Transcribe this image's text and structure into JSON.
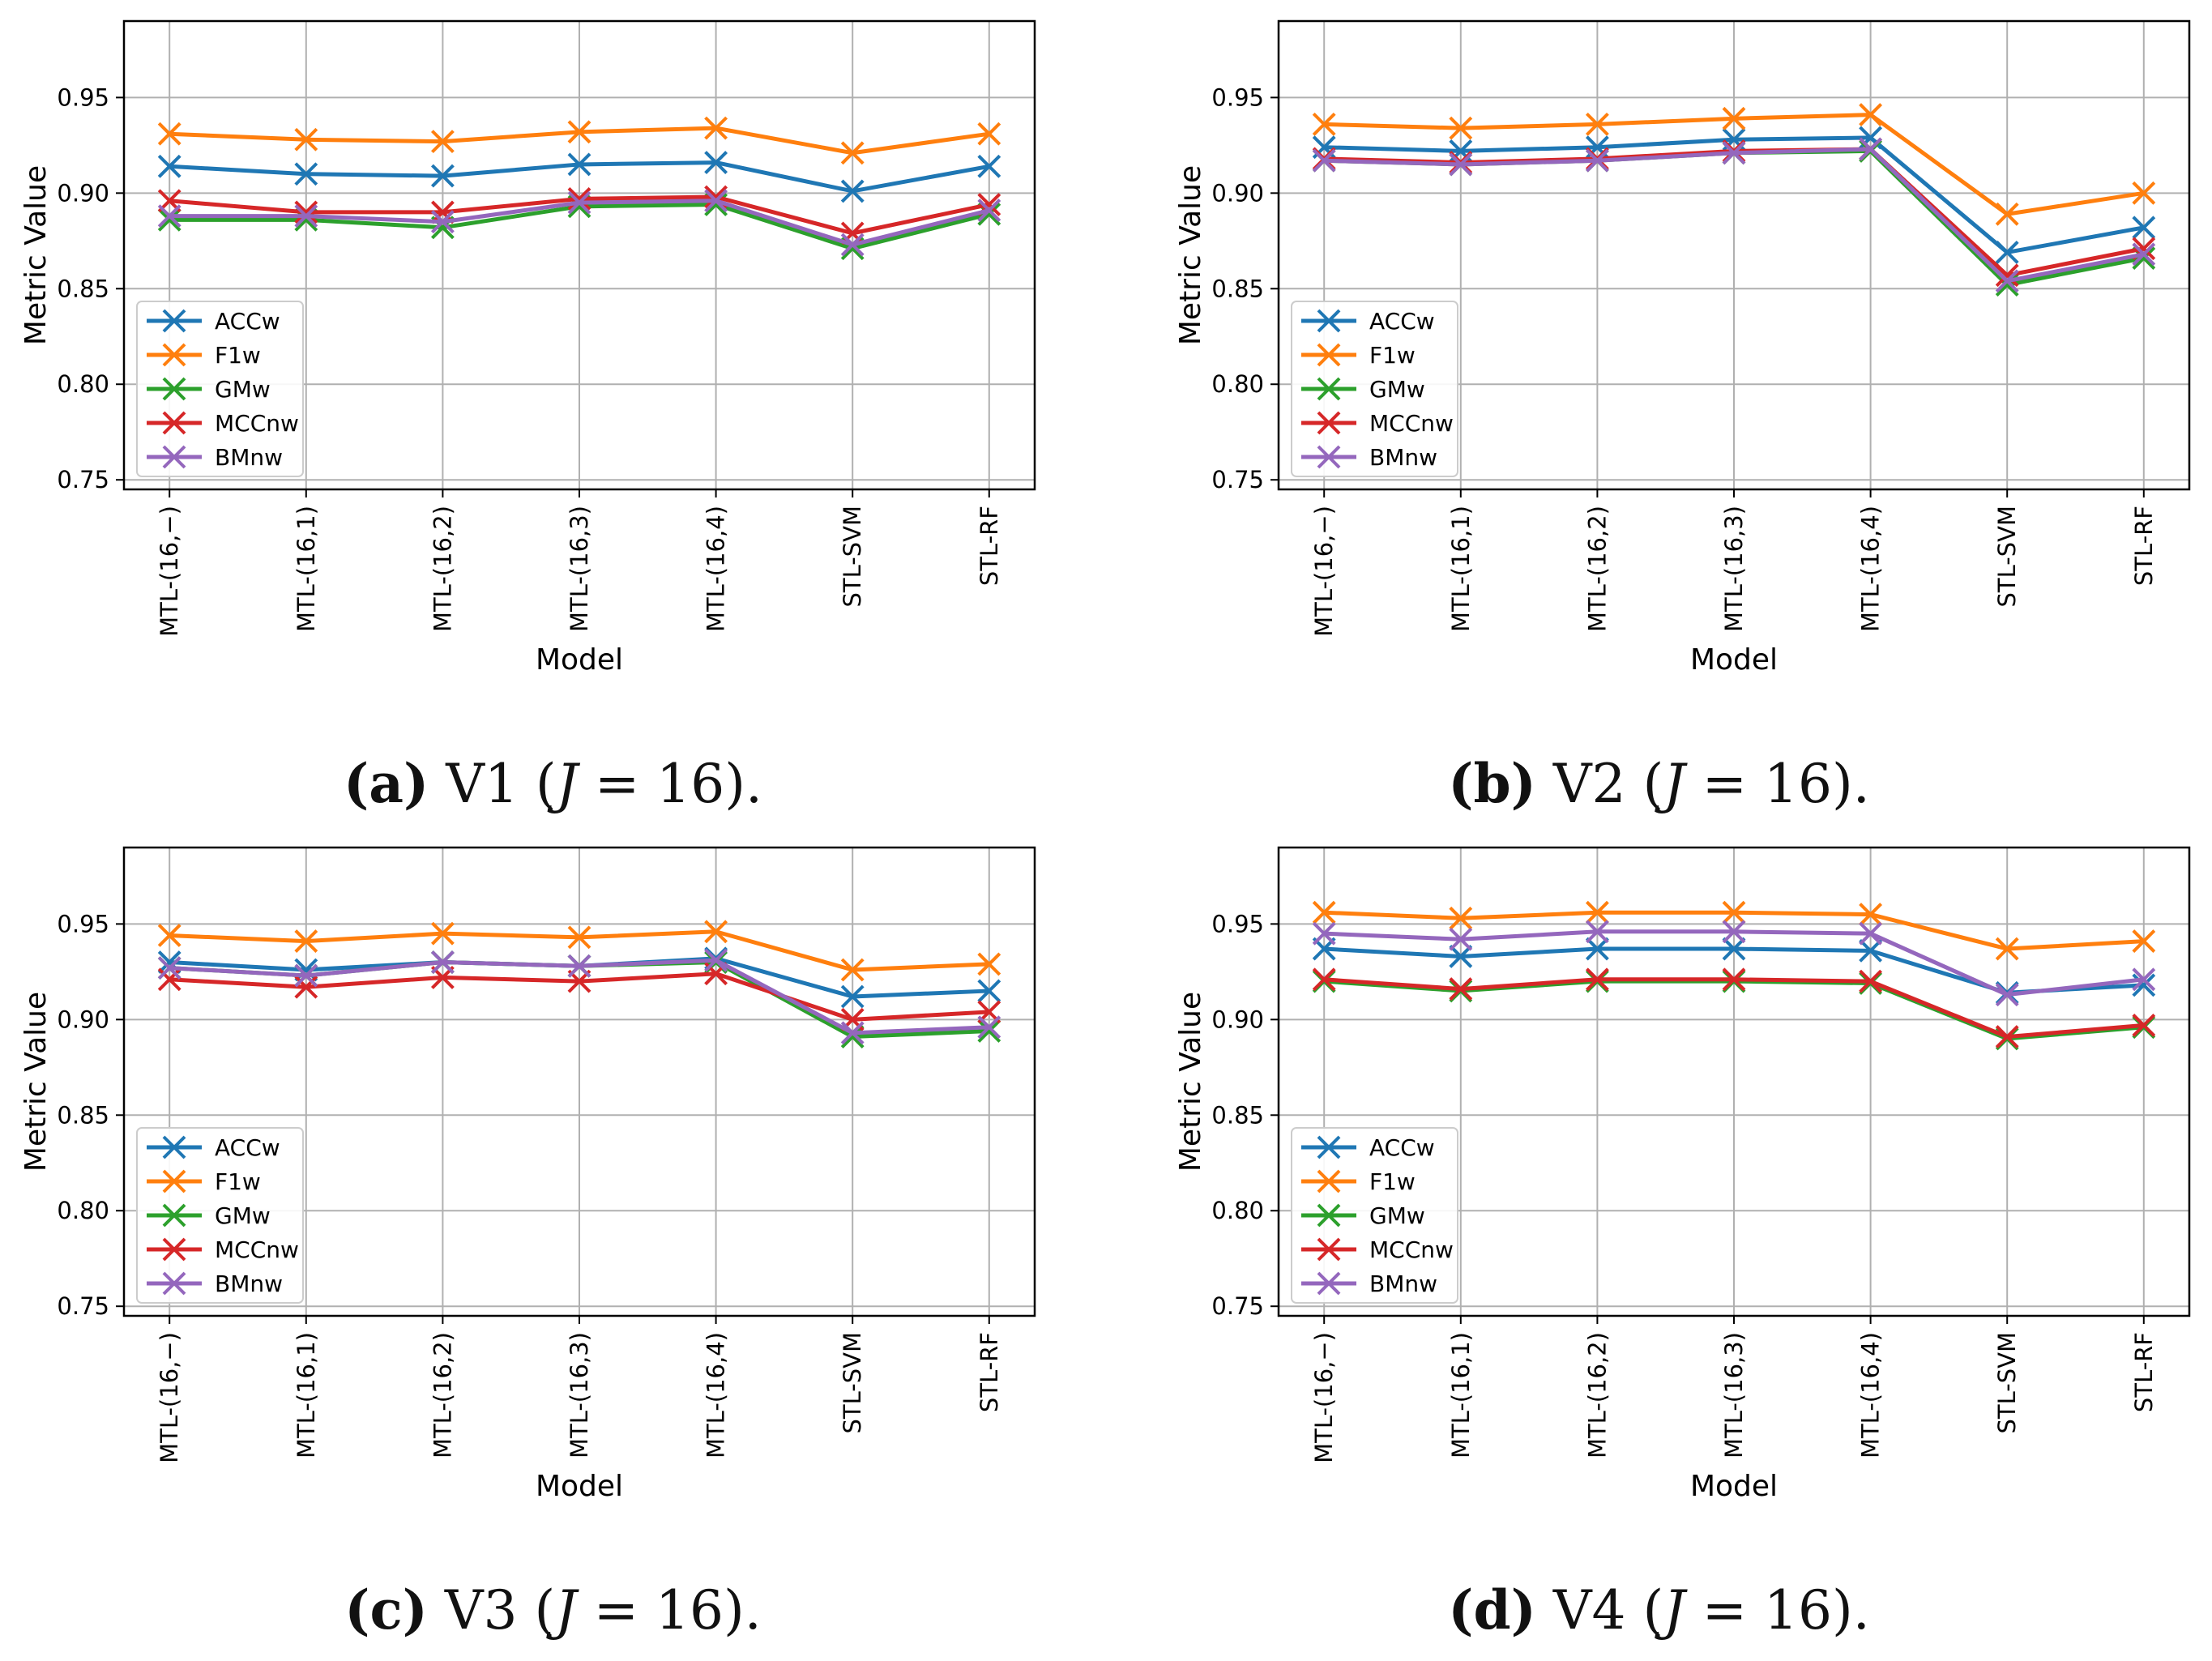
{
  "colors": {
    "ACCw": "#1f77b4",
    "F1w": "#ff7f0e",
    "GMw": "#2ca02c",
    "MCCnw": "#d62728",
    "BMnw": "#9467bd",
    "grid": "#b0b0b0",
    "axis": "#000000"
  },
  "chart_data": [
    {
      "type": "line",
      "caption": {
        "label": "(a)",
        "text": "V1 (",
        "var": "J",
        "rest": " = 16)."
      },
      "xlabel": "Model",
      "ylabel": "Metric Value",
      "ylim": [
        0.745,
        0.99
      ],
      "yticks": [
        "0.75",
        "0.80",
        "0.85",
        "0.90",
        "0.95"
      ],
      "categories": [
        "MTL-(16,−)",
        "MTL-(16,1)",
        "MTL-(16,2)",
        "MTL-(16,3)",
        "MTL-(16,4)",
        "STL-SVM",
        "STL-RF"
      ],
      "legend_position": "lower-left",
      "series": [
        {
          "name": "ACCw",
          "values": [
            0.914,
            0.91,
            0.909,
            0.915,
            0.916,
            0.901,
            0.914
          ]
        },
        {
          "name": "F1w",
          "values": [
            0.931,
            0.928,
            0.927,
            0.932,
            0.934,
            0.921,
            0.931
          ]
        },
        {
          "name": "GMw",
          "values": [
            0.886,
            0.886,
            0.882,
            0.893,
            0.894,
            0.871,
            0.889
          ]
        },
        {
          "name": "MCCnw",
          "values": [
            0.896,
            0.89,
            0.89,
            0.897,
            0.898,
            0.879,
            0.894
          ]
        },
        {
          "name": "BMnw",
          "values": [
            0.888,
            0.888,
            0.885,
            0.895,
            0.896,
            0.873,
            0.891
          ]
        }
      ]
    },
    {
      "type": "line",
      "caption": {
        "label": "(b)",
        "text": "V2 (",
        "var": "J",
        "rest": " = 16)."
      },
      "xlabel": "Model",
      "ylabel": "Metric Value",
      "ylim": [
        0.745,
        0.99
      ],
      "yticks": [
        "0.75",
        "0.80",
        "0.85",
        "0.90",
        "0.95"
      ],
      "categories": [
        "MTL-(16,−)",
        "MTL-(16,1)",
        "MTL-(16,2)",
        "MTL-(16,3)",
        "MTL-(16,4)",
        "STL-SVM",
        "STL-RF"
      ],
      "legend_position": "lower-left",
      "series": [
        {
          "name": "ACCw",
          "values": [
            0.924,
            0.922,
            0.924,
            0.928,
            0.929,
            0.869,
            0.882
          ]
        },
        {
          "name": "F1w",
          "values": [
            0.936,
            0.934,
            0.936,
            0.939,
            0.941,
            0.889,
            0.9
          ]
        },
        {
          "name": "GMw",
          "values": [
            0.917,
            0.915,
            0.917,
            0.921,
            0.922,
            0.852,
            0.866
          ]
        },
        {
          "name": "MCCnw",
          "values": [
            0.918,
            0.916,
            0.918,
            0.922,
            0.923,
            0.857,
            0.871
          ]
        },
        {
          "name": "BMnw",
          "values": [
            0.917,
            0.915,
            0.917,
            0.921,
            0.923,
            0.854,
            0.868
          ]
        }
      ]
    },
    {
      "type": "line",
      "caption": {
        "label": "(c)",
        "text": "V3 (",
        "var": "J",
        "rest": " = 16)."
      },
      "xlabel": "Model",
      "ylabel": "Metric Value",
      "ylim": [
        0.745,
        0.99
      ],
      "yticks": [
        "0.75",
        "0.80",
        "0.85",
        "0.90",
        "0.95"
      ],
      "categories": [
        "MTL-(16,−)",
        "MTL-(16,1)",
        "MTL-(16,2)",
        "MTL-(16,3)",
        "MTL-(16,4)",
        "STL-SVM",
        "STL-RF"
      ],
      "legend_position": "lower-left",
      "series": [
        {
          "name": "ACCw",
          "values": [
            0.93,
            0.926,
            0.93,
            0.928,
            0.932,
            0.912,
            0.915
          ]
        },
        {
          "name": "F1w",
          "values": [
            0.944,
            0.941,
            0.945,
            0.943,
            0.946,
            0.926,
            0.929
          ]
        },
        {
          "name": "GMw",
          "values": [
            0.927,
            0.923,
            0.93,
            0.928,
            0.93,
            0.891,
            0.894
          ]
        },
        {
          "name": "MCCnw",
          "values": [
            0.921,
            0.917,
            0.922,
            0.92,
            0.924,
            0.9,
            0.904
          ]
        },
        {
          "name": "BMnw",
          "values": [
            0.927,
            0.923,
            0.93,
            0.928,
            0.931,
            0.893,
            0.896
          ]
        }
      ]
    },
    {
      "type": "line",
      "caption": {
        "label": "(d)",
        "text": "V4 (",
        "var": "J",
        "rest": " = 16)."
      },
      "xlabel": "Model",
      "ylabel": "Metric Value",
      "ylim": [
        0.745,
        0.99
      ],
      "yticks": [
        "0.75",
        "0.80",
        "0.85",
        "0.90",
        "0.95"
      ],
      "categories": [
        "MTL-(16,−)",
        "MTL-(16,1)",
        "MTL-(16,2)",
        "MTL-(16,3)",
        "MTL-(16,4)",
        "STL-SVM",
        "STL-RF"
      ],
      "legend_position": "lower-left",
      "series": [
        {
          "name": "ACCw",
          "values": [
            0.937,
            0.933,
            0.937,
            0.937,
            0.936,
            0.914,
            0.918
          ]
        },
        {
          "name": "F1w",
          "values": [
            0.956,
            0.953,
            0.956,
            0.956,
            0.955,
            0.937,
            0.941
          ]
        },
        {
          "name": "GMw",
          "values": [
            0.92,
            0.915,
            0.92,
            0.92,
            0.919,
            0.89,
            0.896
          ]
        },
        {
          "name": "MCCnw",
          "values": [
            0.921,
            0.916,
            0.921,
            0.921,
            0.92,
            0.891,
            0.897
          ]
        },
        {
          "name": "BMnw",
          "values": [
            0.945,
            0.942,
            0.946,
            0.946,
            0.945,
            0.913,
            0.921
          ]
        }
      ]
    }
  ]
}
